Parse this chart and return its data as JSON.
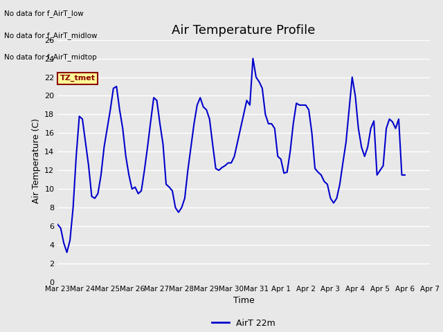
{
  "title": "Air Temperature Profile",
  "xlabel": "Time",
  "ylabel": "Air Temperature (C)",
  "ylim": [
    0,
    26
  ],
  "yticks": [
    0,
    2,
    4,
    6,
    8,
    10,
    12,
    14,
    16,
    18,
    20,
    22,
    24,
    26
  ],
  "line_color": "#0000CC",
  "line_width": 1.5,
  "legend_label": "AirT 22m",
  "legend_line_color": "#0000CC",
  "background_color": "#E8E8E8",
  "plot_bg_color": "#E8E8E8",
  "title_fontsize": 13,
  "axis_label_fontsize": 9,
  "annotations_text": [
    "No data for f_AirT_low",
    "No data for f_AirT_midlow",
    "No data for f_AirT_midtop"
  ],
  "annotation_box_text": "TZ_tmet",
  "x_tick_labels": [
    "Mar 23",
    "Mar 24",
    "Mar 25",
    "Mar 26",
    "Mar 27",
    "Mar 28",
    "Mar 29",
    "Mar 30",
    "Mar 31",
    "Apr 1",
    "Apr 2",
    "Apr 3",
    "Apr 4",
    "Apr 5",
    "Apr 6",
    "Apr 7"
  ],
  "data_times_hours": [
    0,
    3,
    6,
    9,
    12,
    15,
    18,
    21,
    24,
    27,
    30,
    33,
    36,
    39,
    42,
    45,
    48,
    51,
    54,
    57,
    60,
    63,
    66,
    69,
    72,
    75,
    78,
    81,
    84,
    87,
    90,
    93,
    96,
    99,
    102,
    105,
    108,
    111,
    114,
    117,
    120,
    123,
    126,
    129,
    132,
    135,
    138,
    141,
    144,
    147,
    150,
    153,
    156,
    159,
    162,
    165,
    168,
    171,
    174,
    177,
    180,
    183,
    186,
    189,
    192,
    195,
    198,
    201,
    204,
    207,
    210,
    213,
    216,
    219,
    222,
    225,
    228,
    231,
    234,
    237,
    240,
    243,
    246,
    249,
    252,
    255,
    258,
    261,
    264,
    267,
    270,
    273,
    276,
    279,
    282,
    285,
    288,
    291,
    294,
    297,
    300,
    303,
    306,
    309,
    312,
    315,
    318,
    321,
    324,
    327,
    330,
    333,
    336
  ],
  "data_values": [
    6.2,
    5.8,
    4.2,
    3.2,
    4.5,
    8.0,
    13.5,
    17.8,
    17.5,
    15.0,
    12.5,
    9.2,
    9.0,
    9.5,
    11.5,
    14.5,
    16.5,
    18.5,
    20.8,
    21.0,
    18.5,
    16.5,
    13.5,
    11.5,
    10.0,
    10.2,
    9.5,
    9.8,
    12.0,
    14.5,
    17.2,
    19.8,
    19.5,
    17.0,
    14.8,
    10.5,
    10.2,
    9.8,
    8.0,
    7.5,
    8.0,
    9.0,
    12.0,
    14.5,
    17.0,
    19.0,
    19.8,
    18.8,
    18.5,
    17.5,
    14.8,
    12.2,
    12.0,
    12.3,
    12.5,
    12.8,
    12.8,
    13.5,
    15.0,
    16.5,
    18.0,
    19.5,
    19.0,
    24.0,
    22.0,
    21.5,
    20.8,
    18.0,
    17.0,
    17.0,
    16.5,
    13.5,
    13.2,
    11.7,
    11.8,
    14.0,
    17.0,
    19.2,
    19.0,
    19.0,
    19.0,
    18.5,
    16.0,
    12.2,
    11.8,
    11.5,
    10.8,
    10.5,
    9.0,
    8.5,
    9.0,
    10.5,
    12.8,
    15.0,
    18.5,
    22.0,
    20.0,
    16.5,
    14.5,
    13.5,
    14.5,
    16.5,
    17.3,
    11.5,
    12.0,
    12.5,
    16.5,
    17.5,
    17.2,
    16.5,
    17.5,
    11.5,
    11.5
  ],
  "grid_color": "white",
  "grid_linewidth": 1.0
}
